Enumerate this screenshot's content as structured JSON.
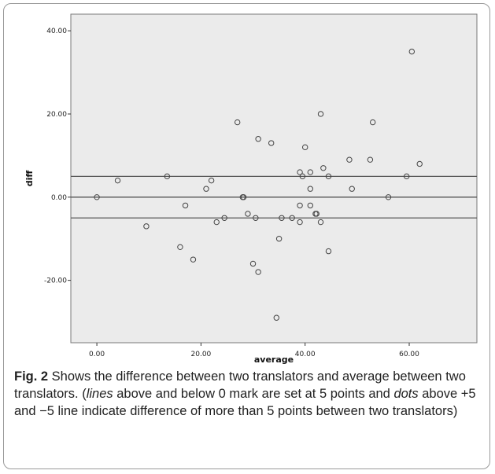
{
  "caption": {
    "label": "Fig. 2",
    "part1": " Shows the difference between two translators and average between two translators. (",
    "lines_word": "lines",
    "part2": " above and below 0 mark are set at 5 points and ",
    "dots_word": "dots",
    "part3": " above +5 and −5 line indicate difference of more than 5 points between two translators)"
  },
  "colors": {
    "plot_background": "#ebebeb",
    "reference_line": "#555555",
    "marker_stroke": "#444444"
  },
  "chart_data": {
    "type": "scatter",
    "title": "",
    "xlabel": "average",
    "ylabel": "diff",
    "xlim": [
      -5,
      73
    ],
    "ylim": [
      -35,
      44
    ],
    "xticks": [
      0,
      20,
      40,
      60
    ],
    "xtick_labels": [
      "0.00",
      "20.00",
      "40.00",
      "60.00"
    ],
    "yticks": [
      -20,
      0,
      20,
      40
    ],
    "ytick_labels": [
      "-20.00",
      "0.00",
      "20.00",
      "40.00"
    ],
    "reference_lines_y": [
      5,
      0,
      -5
    ],
    "grid": false,
    "marker": "open-circle",
    "points": [
      {
        "x": 0,
        "y": 0
      },
      {
        "x": 4,
        "y": 4
      },
      {
        "x": 9.5,
        "y": -7
      },
      {
        "x": 13.5,
        "y": 5
      },
      {
        "x": 16,
        "y": -12
      },
      {
        "x": 17,
        "y": -2
      },
      {
        "x": 18.5,
        "y": -15
      },
      {
        "x": 21,
        "y": 2
      },
      {
        "x": 22,
        "y": 4
      },
      {
        "x": 23,
        "y": -6
      },
      {
        "x": 24.5,
        "y": -5
      },
      {
        "x": 27,
        "y": 18
      },
      {
        "x": 28,
        "y": 0
      },
      {
        "x": 28.2,
        "y": 0
      },
      {
        "x": 29,
        "y": -4
      },
      {
        "x": 30,
        "y": -16
      },
      {
        "x": 30.5,
        "y": -5
      },
      {
        "x": 31,
        "y": -18
      },
      {
        "x": 31,
        "y": 14
      },
      {
        "x": 33.5,
        "y": 13
      },
      {
        "x": 34.5,
        "y": -29
      },
      {
        "x": 35,
        "y": -10
      },
      {
        "x": 35.5,
        "y": -5
      },
      {
        "x": 37.5,
        "y": -5
      },
      {
        "x": 39,
        "y": 6
      },
      {
        "x": 39,
        "y": -2
      },
      {
        "x": 39,
        "y": -6
      },
      {
        "x": 39.5,
        "y": 5
      },
      {
        "x": 40,
        "y": 12
      },
      {
        "x": 41,
        "y": 6
      },
      {
        "x": 41,
        "y": 2
      },
      {
        "x": 41,
        "y": -2
      },
      {
        "x": 42,
        "y": -4
      },
      {
        "x": 42.2,
        "y": -4
      },
      {
        "x": 43,
        "y": 20
      },
      {
        "x": 43,
        "y": -6
      },
      {
        "x": 43.5,
        "y": 7
      },
      {
        "x": 44.5,
        "y": 5
      },
      {
        "x": 44.5,
        "y": -13
      },
      {
        "x": 48.5,
        "y": 9
      },
      {
        "x": 49,
        "y": 2
      },
      {
        "x": 52.5,
        "y": 9
      },
      {
        "x": 53,
        "y": 18
      },
      {
        "x": 56,
        "y": 0
      },
      {
        "x": 59.5,
        "y": 5
      },
      {
        "x": 60.5,
        "y": 35
      },
      {
        "x": 62,
        "y": 8
      }
    ]
  }
}
